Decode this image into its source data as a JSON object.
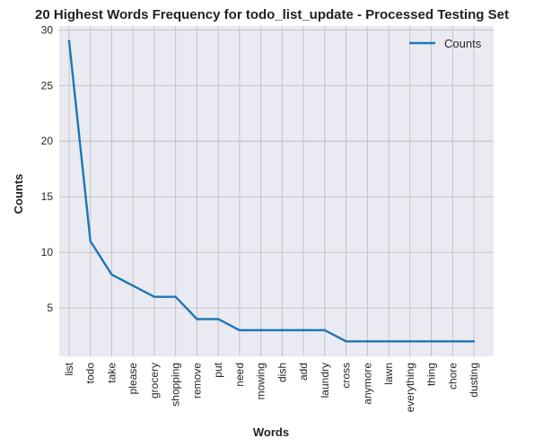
{
  "chart_data": {
    "type": "line",
    "title": "20 Highest Words Frequency for todo_list_update - Processed Testing Set",
    "xlabel": "Words",
    "ylabel": "Counts",
    "categories": [
      "list",
      "todo",
      "take",
      "please",
      "grocery",
      "shopping",
      "remove",
      "put",
      "need",
      "mowing",
      "dish",
      "add",
      "laundry",
      "cross",
      "anymore",
      "lawn",
      "everything",
      "thing",
      "chore",
      "dusting"
    ],
    "series": [
      {
        "name": "Counts",
        "values": [
          29,
          11,
          8,
          7,
          6,
          6,
          4,
          4,
          3,
          3,
          3,
          3,
          3,
          2,
          2,
          2,
          2,
          2,
          2,
          2
        ]
      }
    ],
    "yticks": [
      5,
      10,
      15,
      20,
      25,
      30
    ],
    "ylim": [
      0.65,
      30.35
    ],
    "grid": true,
    "legend": "top-right",
    "colors": {
      "line": "#1f77b4",
      "plot_bg": "#eaeaf2",
      "grid": "#bfbfbf"
    }
  }
}
